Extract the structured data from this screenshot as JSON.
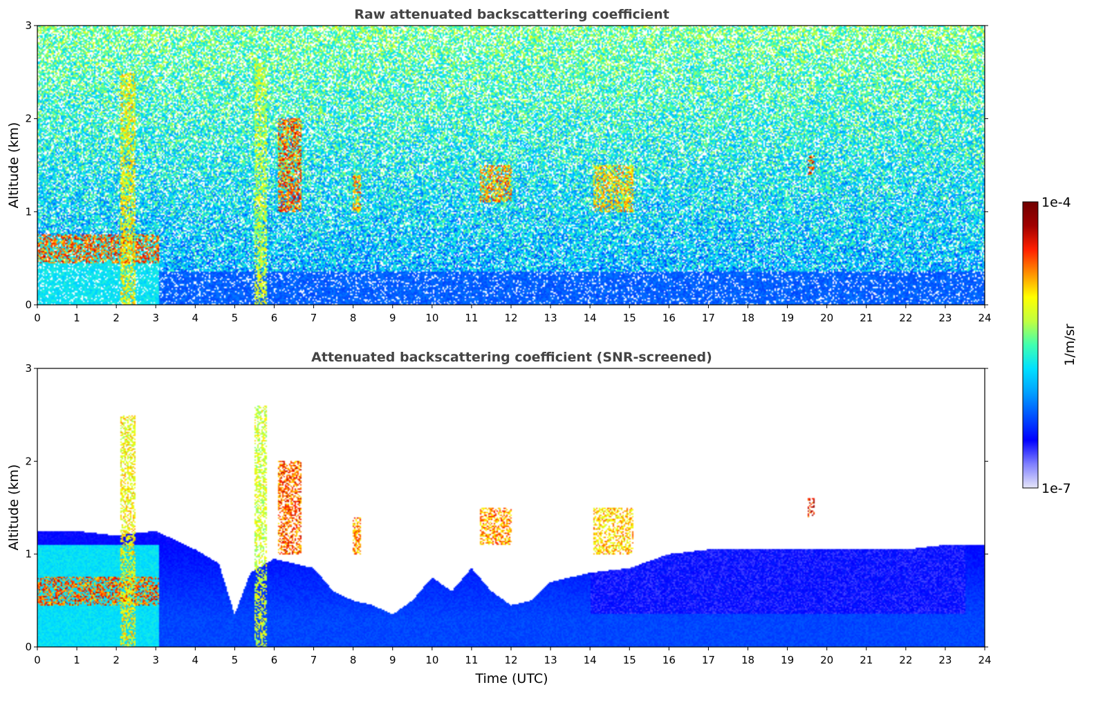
{
  "chart_data": [
    {
      "type": "heatmap",
      "title": "Raw attenuated backscattering coefficient",
      "xlabel": "",
      "ylabel": "Altitude (km)",
      "xlim": [
        0,
        24
      ],
      "ylim": [
        0,
        3
      ],
      "xticks": [
        0,
        1,
        2,
        3,
        4,
        5,
        6,
        7,
        8,
        9,
        10,
        11,
        12,
        13,
        14,
        15,
        16,
        17,
        18,
        19,
        20,
        21,
        22,
        23,
        24
      ],
      "yticks": [
        0,
        1,
        2,
        3
      ],
      "screened": false,
      "grid": false,
      "features": [
        {
          "t0": 0.0,
          "t1": 3.1,
          "base_km": 0.45,
          "top_km": 0.75,
          "level": 0.9
        },
        {
          "t0": 2.1,
          "t1": 2.5,
          "base_km": 0.0,
          "top_km": 2.5,
          "level": 0.75
        },
        {
          "t0": 5.5,
          "t1": 5.8,
          "base_km": 0.0,
          "top_km": 2.6,
          "level": 0.7
        },
        {
          "t0": 6.1,
          "t1": 6.7,
          "base_km": 1.0,
          "top_km": 2.0,
          "level": 0.9
        },
        {
          "t0": 8.0,
          "t1": 8.2,
          "base_km": 1.0,
          "top_km": 1.4,
          "level": 0.85
        },
        {
          "t0": 11.2,
          "t1": 12.0,
          "base_km": 1.1,
          "top_km": 1.5,
          "level": 0.85
        },
        {
          "t0": 14.1,
          "t1": 15.1,
          "base_km": 1.0,
          "top_km": 1.5,
          "level": 0.8
        },
        {
          "t0": 19.5,
          "t1": 19.7,
          "base_km": 1.4,
          "top_km": 1.6,
          "level": 0.95
        }
      ]
    },
    {
      "type": "heatmap",
      "title": "Attenuated backscattering coefficient (SNR-screened)",
      "xlabel": "Time (UTC)",
      "ylabel": "Altitude (km)",
      "xlim": [
        0,
        24
      ],
      "ylim": [
        0,
        3
      ],
      "xticks": [
        0,
        1,
        2,
        3,
        4,
        5,
        6,
        7,
        8,
        9,
        10,
        11,
        12,
        13,
        14,
        15,
        16,
        17,
        18,
        19,
        20,
        21,
        22,
        23,
        24
      ],
      "yticks": [
        0,
        1,
        2,
        3
      ],
      "screened": true,
      "grid": false,
      "boundary_layer_top_km": [
        [
          0,
          1.25
        ],
        [
          1,
          1.25
        ],
        [
          2,
          1.2
        ],
        [
          3,
          1.25
        ],
        [
          4,
          1.05
        ],
        [
          4.6,
          0.9
        ],
        [
          5.0,
          0.35
        ],
        [
          5.4,
          0.8
        ],
        [
          6,
          0.95
        ],
        [
          7,
          0.85
        ],
        [
          7.5,
          0.6
        ],
        [
          8,
          0.5
        ],
        [
          8.5,
          0.45
        ],
        [
          9,
          0.35
        ],
        [
          9.5,
          0.5
        ],
        [
          10,
          0.75
        ],
        [
          10.5,
          0.6
        ],
        [
          11,
          0.85
        ],
        [
          11.5,
          0.6
        ],
        [
          12,
          0.45
        ],
        [
          12.5,
          0.5
        ],
        [
          13,
          0.7
        ],
        [
          14,
          0.8
        ],
        [
          15,
          0.85
        ],
        [
          16,
          1.0
        ],
        [
          17,
          1.05
        ],
        [
          18,
          1.05
        ],
        [
          19,
          1.05
        ],
        [
          20,
          1.05
        ],
        [
          21,
          1.05
        ],
        [
          22,
          1.05
        ],
        [
          23,
          1.1
        ],
        [
          24,
          1.1
        ]
      ],
      "features": [
        {
          "t0": 0.0,
          "t1": 3.1,
          "base_km": 0.45,
          "top_km": 0.75,
          "level": 0.9
        },
        {
          "t0": 2.1,
          "t1": 2.5,
          "base_km": 0.0,
          "top_km": 2.5,
          "level": 0.75
        },
        {
          "t0": 5.5,
          "t1": 5.8,
          "base_km": 0.0,
          "top_km": 2.6,
          "level": 0.7
        },
        {
          "t0": 6.1,
          "t1": 6.7,
          "base_km": 1.0,
          "top_km": 2.0,
          "level": 0.9
        },
        {
          "t0": 8.0,
          "t1": 8.2,
          "base_km": 1.0,
          "top_km": 1.4,
          "level": 0.85
        },
        {
          "t0": 11.2,
          "t1": 12.0,
          "base_km": 1.1,
          "top_km": 1.5,
          "level": 0.85
        },
        {
          "t0": 14.1,
          "t1": 15.1,
          "base_km": 1.0,
          "top_km": 1.5,
          "level": 0.8
        },
        {
          "t0": 19.5,
          "t1": 19.7,
          "base_km": 1.4,
          "top_km": 1.6,
          "level": 0.95
        }
      ]
    }
  ],
  "colorbar": {
    "label": "1/m/sr",
    "max_label": "1e-4",
    "min_label": "1e-7",
    "range": [
      1e-07,
      0.0001
    ],
    "scale": "log",
    "colormap": [
      "#e6e6f8",
      "#8080ff",
      "#0000ff",
      "#0050ff",
      "#00a0ff",
      "#00e0ff",
      "#40ffb0",
      "#c0ff40",
      "#ffff00",
      "#ff9000",
      "#ff2000",
      "#a00000",
      "#700000"
    ]
  }
}
